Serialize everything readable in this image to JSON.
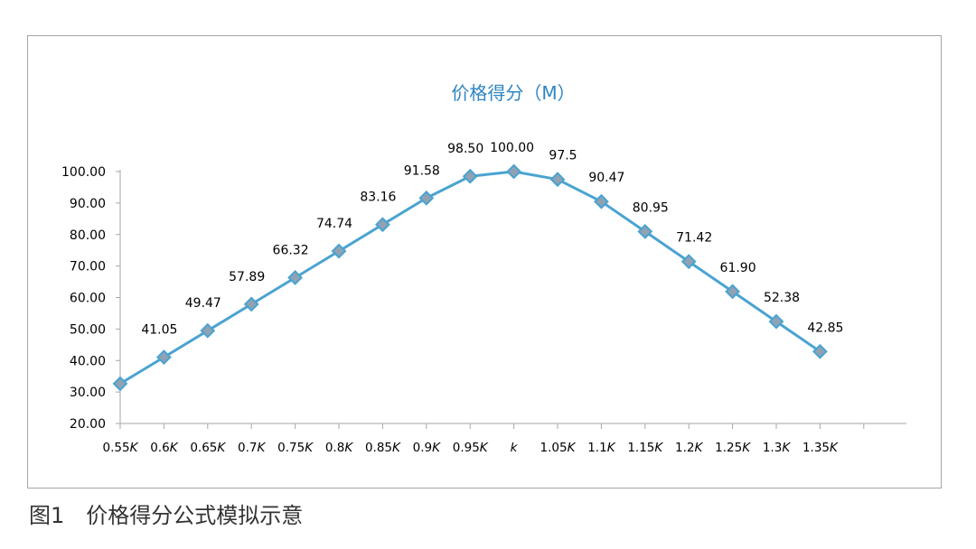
{
  "chart_data": {
    "type": "line",
    "title": "价格得分（M）",
    "xlabel": "",
    "ylabel": "",
    "categories": [
      "0.55K",
      "0.6K",
      "0.65K",
      "0.7K",
      "0.75K",
      "0.8K",
      "0.85K",
      "0.9K",
      "0.95K",
      "k",
      "1.05K",
      "1.1K",
      "1.15K",
      "1.2K",
      "1.25K",
      "1.3K",
      "1.35K"
    ],
    "series": [
      {
        "values": [
          32.64,
          41.05,
          49.47,
          57.89,
          66.32,
          74.74,
          83.16,
          91.58,
          98.5,
          100.0,
          97.5,
          90.47,
          80.95,
          71.42,
          61.9,
          52.38,
          42.85
        ]
      }
    ],
    "data_labels": [
      "",
      "41.05",
      "49.47",
      "57.89",
      "66.32",
      "74.74",
      "83.16",
      "91.58",
      "98.50",
      "100.00",
      "97.5",
      "90.47",
      "80.95",
      "71.42",
      "61.90",
      "52.38",
      "42.85"
    ],
    "yticks": [
      "20.00",
      "30.00",
      "40.00",
      "50.00",
      "60.00",
      "70.00",
      "80.00",
      "90.00",
      "100.00"
    ],
    "ylim": [
      20,
      100
    ],
    "grid": false,
    "legend": "none",
    "colors": {
      "line": "#4aa3d1",
      "marker_fill": "#8fa2b3",
      "marker_stroke": "#4aa3d1",
      "title": "#2e86c1",
      "axis": "#a6a6a6"
    }
  },
  "caption": "图1　价格得分公式模拟示意"
}
